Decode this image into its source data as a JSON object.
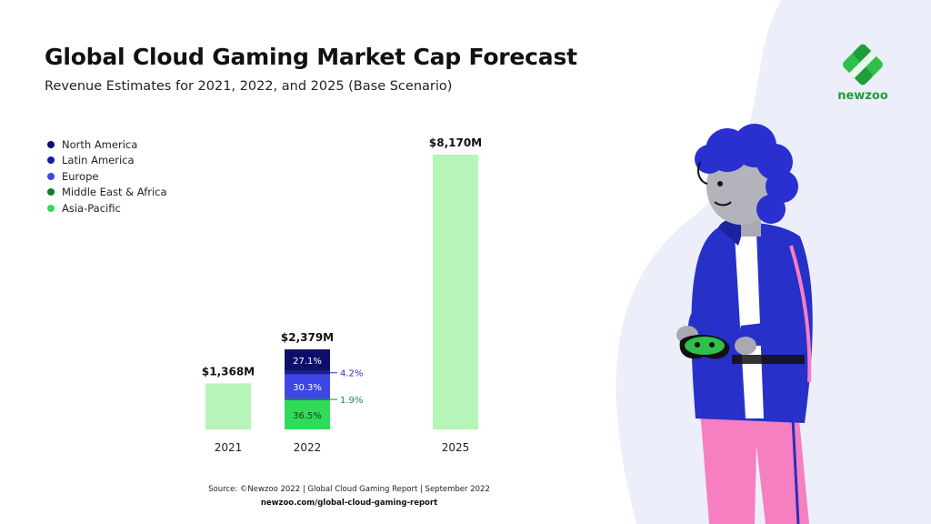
{
  "title": "Global Cloud Gaming Market Cap Forecast",
  "subtitle": "Revenue Estimates for 2021, 2022, and 2025 (Base Scenario)",
  "source": "Source: ©Newzoo 2022 | Global Cloud Gaming Report | September 2022",
  "source_url": "newzoo.com/global-cloud-gaming-report",
  "logo_text": "newzoo",
  "colors": {
    "north_america": "#0d0d6b",
    "latin_america": "#1a1aa8",
    "europe": "#3f46e6",
    "middle_east_africa": "#0e7a2a",
    "asia_pacific": "#2fdc5a",
    "total_bar": "#b6f5b7",
    "background_blob": "#eceef9"
  },
  "legend": [
    {
      "label": "North America",
      "color": "#0d0d6b"
    },
    {
      "label": "Latin America",
      "color": "#1a1aa8"
    },
    {
      "label": "Europe",
      "color": "#3f46e6"
    },
    {
      "label": "Middle East & Africa",
      "color": "#0e7a2a"
    },
    {
      "label": "Asia-Pacific",
      "color": "#2fdc5a"
    }
  ],
  "chart_data": {
    "type": "bar",
    "title": "Global Cloud Gaming Market Cap Forecast",
    "subtitle": "Revenue Estimates for 2021, 2022, and 2025 (Base Scenario)",
    "categories": [
      "2021",
      "2022",
      "2025"
    ],
    "values": [
      1368,
      2379,
      8170
    ],
    "value_labels": [
      "$1,368M",
      "$2,379M",
      "$8,170M"
    ],
    "unit": "$M",
    "ylim": [
      0,
      8170
    ],
    "grid": false,
    "legend_position": "top-left",
    "breakdown_2022": [
      {
        "name": "North America",
        "percent": 27.1,
        "label": "27.1%"
      },
      {
        "name": "Latin America",
        "percent": 4.2,
        "label": "4.2%"
      },
      {
        "name": "Europe",
        "percent": 30.3,
        "label": "30.3%"
      },
      {
        "name": "Middle East & Africa",
        "percent": 1.9,
        "label": "1.9%"
      },
      {
        "name": "Asia-Pacific",
        "percent": 36.5,
        "label": "36.5%"
      }
    ]
  }
}
